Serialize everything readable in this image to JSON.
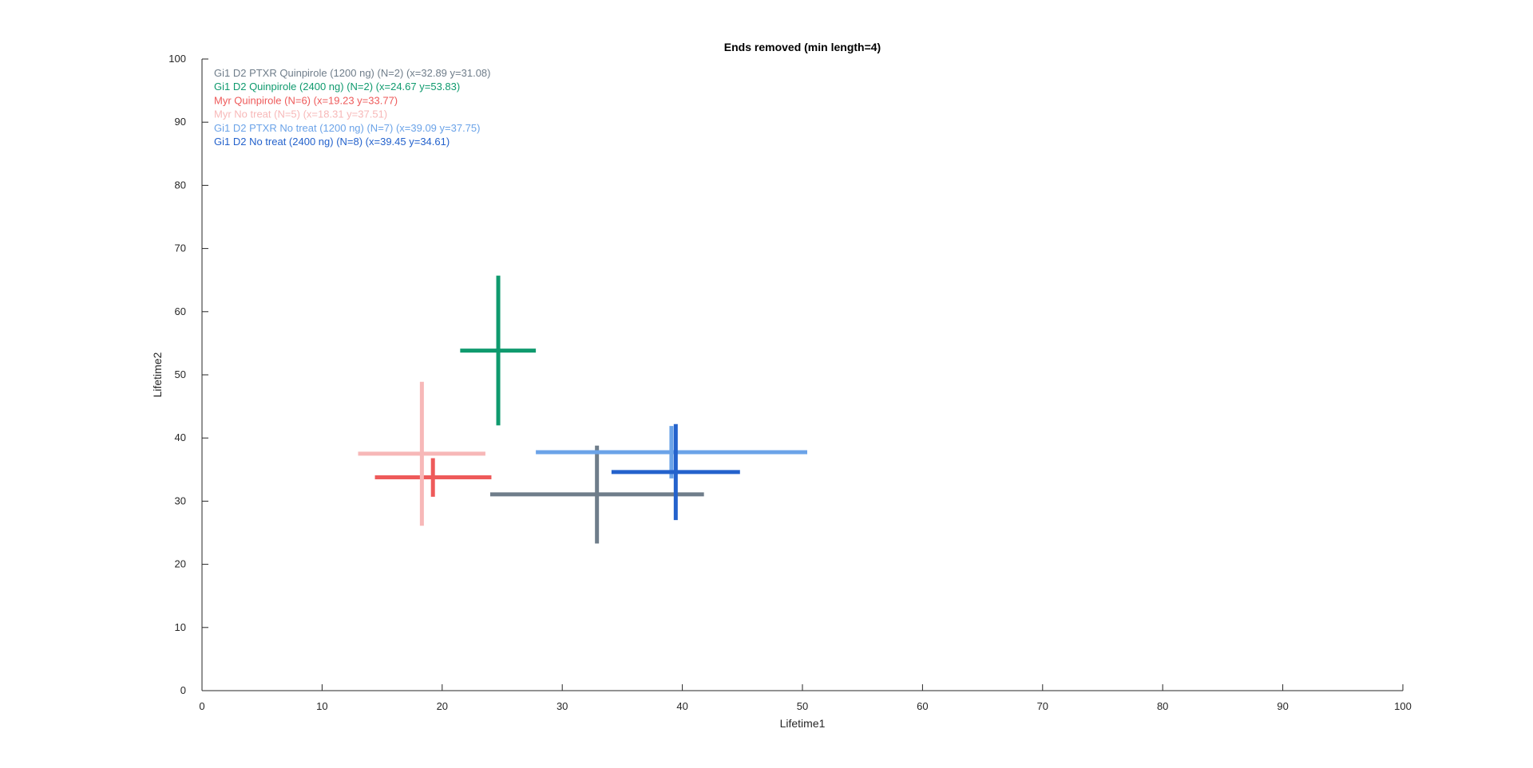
{
  "chart_data": {
    "type": "scatter",
    "title": "Ends removed (min length=4)",
    "xlabel": "Lifetime1",
    "ylabel": "Lifetime2",
    "xlim": [
      0,
      100
    ],
    "ylim": [
      0,
      100
    ],
    "xticks": [
      0,
      10,
      20,
      30,
      40,
      50,
      60,
      70,
      80,
      90,
      100
    ],
    "yticks": [
      0,
      10,
      20,
      30,
      40,
      50,
      60,
      70,
      80,
      90,
      100
    ],
    "grid": false,
    "legend_position": "top-left",
    "series": [
      {
        "label": "Gi1 D2 PTXR Quinpirole (1200 ng) (N=2) (x=32.89 y=31.08)",
        "color": "#6f7d8a",
        "x": 32.89,
        "y": 31.08,
        "x_range": [
          24.0,
          41.8
        ],
        "y_range": [
          23.3,
          38.8
        ]
      },
      {
        "label": "Gi1 D2 Quinpirole (2400 ng) (N=2) (x=24.67 y=53.83)",
        "color": "#0f9a6e",
        "x": 24.67,
        "y": 53.83,
        "x_range": [
          21.5,
          27.8
        ],
        "y_range": [
          42.0,
          65.7
        ]
      },
      {
        "label": "Myr Quinpirole (N=6) (x=19.23 y=33.77)",
        "color": "#ee5a5a",
        "x": 19.23,
        "y": 33.77,
        "x_range": [
          14.4,
          24.1
        ],
        "y_range": [
          30.7,
          36.8
        ]
      },
      {
        "label": "Myr No treat (N=5) (x=18.31 y=37.51)",
        "color": "#f7b8b8",
        "x": 18.31,
        "y": 37.51,
        "x_range": [
          13.0,
          23.6
        ],
        "y_range": [
          26.1,
          48.9
        ]
      },
      {
        "label": "Gi1 D2 PTXR No treat (1200 ng) (N=7) (x=39.09 y=37.75)",
        "color": "#6ba3e8",
        "x": 39.09,
        "y": 37.75,
        "x_range": [
          27.8,
          50.4
        ],
        "y_range": [
          33.6,
          41.9
        ]
      },
      {
        "label": "Gi1 D2 No treat (2400 ng) (N=8) (x=39.45 y=34.61)",
        "color": "#2462cc",
        "x": 39.45,
        "y": 34.61,
        "x_range": [
          34.1,
          44.8
        ],
        "y_range": [
          27.0,
          42.2
        ]
      }
    ]
  }
}
